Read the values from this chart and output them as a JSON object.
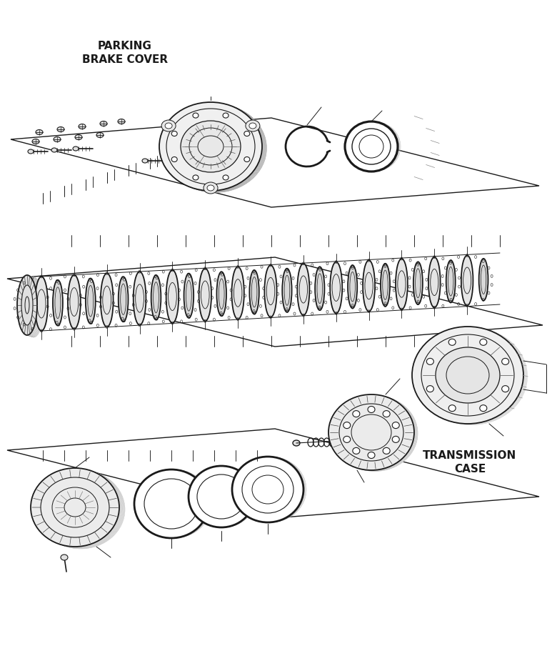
{
  "bg_color": "#ffffff",
  "line_color": "#1a1a1a",
  "text_color": "#1a1a1a",
  "title_parking": "PARKING\nBRAKE COVER",
  "title_transmission": "TRANSMISSION\nCASE",
  "fig_width": 7.73,
  "fig_height": 9.25,
  "dpi": 100
}
